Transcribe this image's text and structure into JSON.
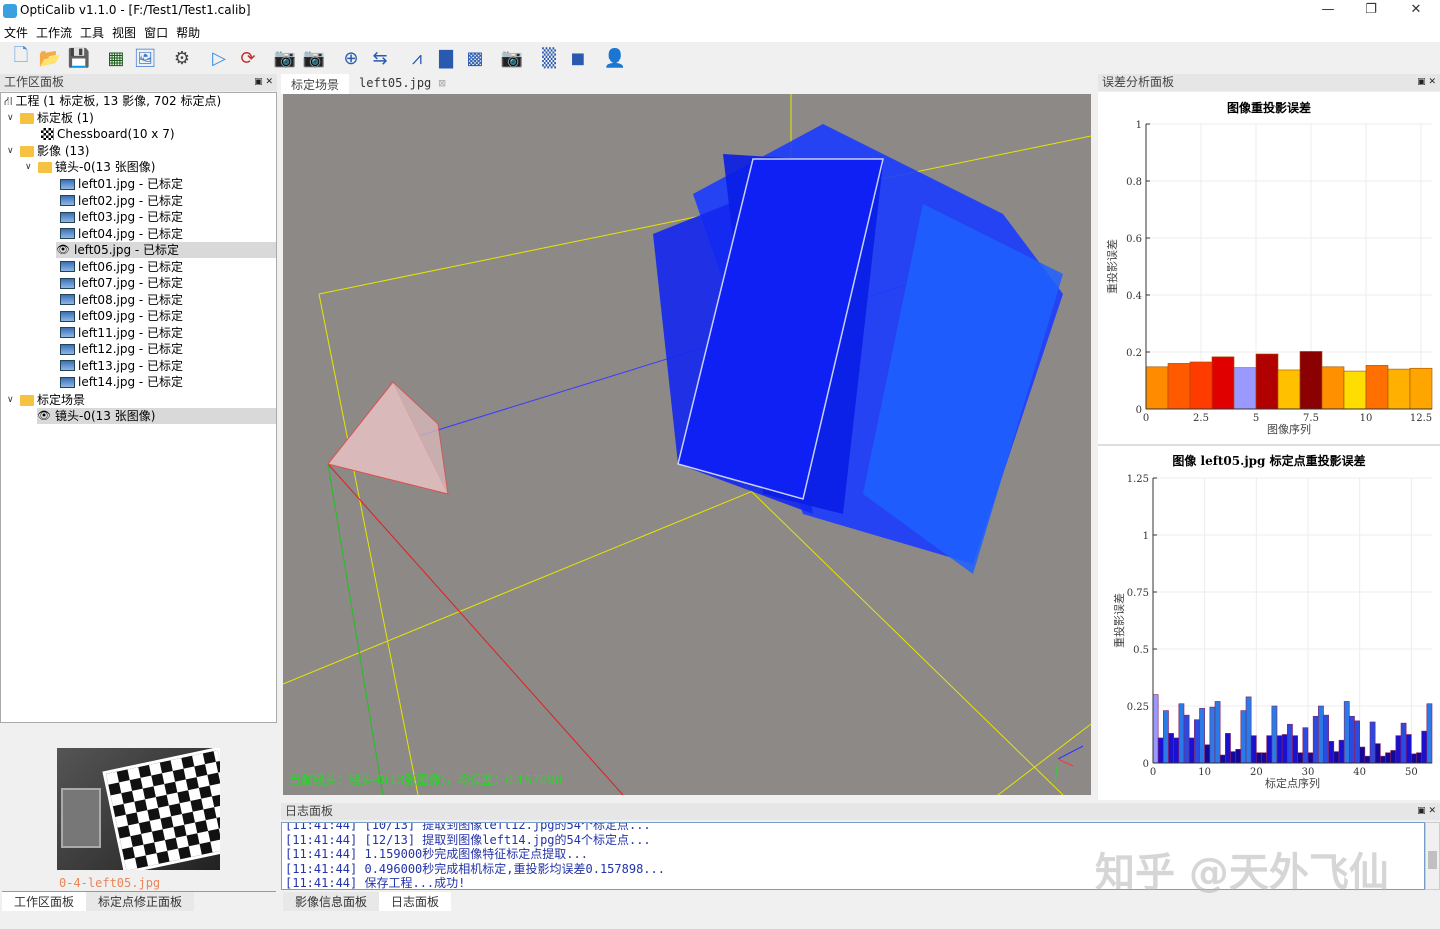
{
  "window": {
    "title": "OptiCalib v1.1.0 - [F:/Test1/Test1.calib]",
    "minimize": "—",
    "maximize": "❐",
    "close": "✕"
  },
  "menu": [
    "文件",
    "工作流",
    "工具",
    "视图",
    "窗口",
    "帮助"
  ],
  "toolbar": [
    {
      "icon": "new-file-icon",
      "g": "🗋"
    },
    {
      "icon": "open-folder-icon",
      "g": "📂"
    },
    {
      "icon": "save-icon",
      "g": "💾"
    },
    {
      "icon": "add-board-icon",
      "g": "▦"
    },
    {
      "icon": "add-image-icon",
      "g": "🖼"
    },
    {
      "icon": "settings-icon",
      "g": "⚙"
    },
    {
      "icon": "run-icon",
      "g": "▷"
    },
    {
      "icon": "refresh-icon",
      "g": "⟳"
    },
    {
      "icon": "camera-zoom-in-icon",
      "g": "📷"
    },
    {
      "icon": "camera-zoom-out-icon",
      "g": "📷"
    },
    {
      "icon": "split-icon",
      "g": "⊕"
    },
    {
      "icon": "swap-icon",
      "g": "⇆"
    },
    {
      "icon": "ruler-icon",
      "g": "⩘"
    },
    {
      "icon": "board-ruler-icon",
      "g": "▇"
    },
    {
      "icon": "checker-icon",
      "g": "▩"
    },
    {
      "icon": "camera-icon",
      "g": "📷"
    },
    {
      "icon": "pattern-icon",
      "g": "▒"
    },
    {
      "icon": "layers-icon",
      "g": "◼"
    },
    {
      "icon": "user-view-icon",
      "g": "👤"
    }
  ],
  "left_panel": {
    "title": "工作区面板",
    "tree": {
      "root": "工程 (1 标定板, 13 影像, 702 标定点)",
      "boards": "标定板 (1)",
      "board": "Chessboard(10 x 7)",
      "images": "影像 (13)",
      "lens": "镜头-0(13 张图像)",
      "files": [
        "left01.jpg - 已标定",
        "left02.jpg - 已标定",
        "left03.jpg - 已标定",
        "left04.jpg - 已标定",
        "left05.jpg - 已标定",
        "left06.jpg - 已标定",
        "left07.jpg - 已标定",
        "left08.jpg - 已标定",
        "left09.jpg - 已标定",
        "left11.jpg - 已标定",
        "left12.jpg - 已标定",
        "left13.jpg - 已标定",
        "left14.jpg - 已标定"
      ],
      "selected_file": "left05.jpg - 已标定",
      "scene": "标定场景",
      "scene_lens": "镜头-0(13 张图像)"
    },
    "thumbnail_label": "0-4-left05.jpg",
    "tabs": [
      "工作区面板",
      "标定点修正面板"
    ]
  },
  "center": {
    "tabs": [
      "标定场景",
      "left05.jpg"
    ],
    "active_tab": "标定场景",
    "status": "当前镜头：镜头-0(13张图像)，均误差：0.157898"
  },
  "log_panel": {
    "title": "日志面板",
    "lines": [
      "[11:41:44] [10/13] 提取到图像left12.jpg的54个标定点...",
      "[11:41:44] [12/13] 提取到图像left14.jpg的54个标定点...",
      "[11:41:44] 1.159000秒完成图像特征标定点提取...",
      "[11:41:44] 0.496000秒完成相机标定,重投影均误差0.157898...",
      "[11:41:44] 保存工程...成功!"
    ],
    "tabs": [
      "影像信息面板",
      "日志面板"
    ],
    "active_tab": "日志面板"
  },
  "right_panel": {
    "title": "误差分析面板"
  },
  "watermark": "知乎 @天外飞仙",
  "chart_data": [
    {
      "type": "bar",
      "title": "图像重投影误差",
      "xlabel": "图像序列",
      "ylabel": "重投影误差",
      "xlim": [
        0,
        13
      ],
      "ylim": [
        0,
        1
      ],
      "xticks": [
        "0",
        "2.5",
        "5",
        "7.5",
        "10",
        "12.5"
      ],
      "yticks": [
        "0",
        "0.2",
        "0.4",
        "0.6",
        "0.8",
        "1"
      ],
      "grid": true,
      "values": [
        0.148,
        0.16,
        0.165,
        0.183,
        0.145,
        0.193,
        0.137,
        0.202,
        0.148,
        0.133,
        0.153,
        0.14,
        0.143
      ],
      "colors": [
        "#ff8c00",
        "#ff5a00",
        "#ff3c00",
        "#e00000",
        "#9999ff",
        "#b00000",
        "#ffc000",
        "#8b0000",
        "#ff9000",
        "#ffdd00",
        "#ff7000",
        "#ffb000",
        "#ffa500"
      ]
    },
    {
      "type": "bar",
      "title": "图像 left05.jpg 标定点重投影误差",
      "xlabel": "标定点序列",
      "ylabel": "重投影误差",
      "xlim": [
        0,
        54
      ],
      "ylim": [
        0,
        1.25
      ],
      "xticks": [
        "0",
        "10",
        "20",
        "30",
        "40",
        "50"
      ],
      "yticks": [
        "0",
        "0.25",
        "0.5",
        "0.75",
        "1",
        "1.25"
      ],
      "grid": true,
      "values": [
        0.3,
        0.11,
        0.23,
        0.13,
        0.11,
        0.26,
        0.21,
        0.11,
        0.19,
        0.24,
        0.08,
        0.245,
        0.27,
        0.035,
        0.13,
        0.05,
        0.06,
        0.23,
        0.29,
        0.12,
        0.045,
        0.045,
        0.12,
        0.25,
        0.12,
        0.125,
        0.17,
        0.12,
        0.045,
        0.155,
        0.045,
        0.205,
        0.25,
        0.21,
        0.095,
        0.05,
        0.1,
        0.27,
        0.205,
        0.185,
        0.07,
        0.03,
        0.18,
        0.085,
        0.03,
        0.045,
        0.055,
        0.12,
        0.175,
        0.125,
        0.04,
        0.045,
        0.14,
        0.26
      ]
    }
  ]
}
